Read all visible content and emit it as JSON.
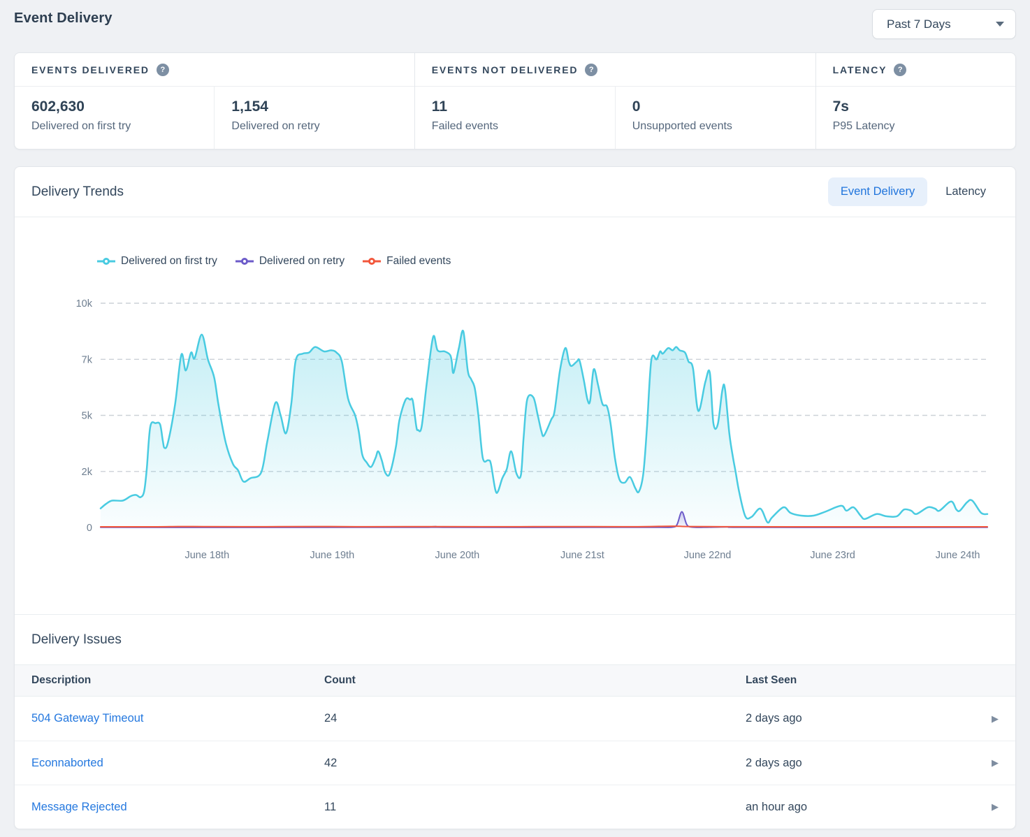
{
  "page": {
    "title": "Event Delivery",
    "time_range": "Past 7 Days",
    "accent_color": "#2478df"
  },
  "stats": {
    "sections": [
      {
        "title": "EVENTS DELIVERED",
        "metrics": [
          {
            "value": "602,630",
            "label": "Delivered on first try"
          },
          {
            "value": "1,154",
            "label": "Delivered on retry"
          }
        ]
      },
      {
        "title": "EVENTS NOT DELIVERED",
        "metrics": [
          {
            "value": "11",
            "label": "Failed events"
          },
          {
            "value": "0",
            "label": "Unsupported events"
          }
        ]
      },
      {
        "title": "LATENCY",
        "metrics": [
          {
            "value": "7s",
            "label": "P95 Latency"
          }
        ]
      }
    ]
  },
  "trends": {
    "title": "Delivery Trends",
    "tabs": [
      {
        "label": "Event Delivery",
        "active": true
      },
      {
        "label": "Latency",
        "active": false
      }
    ]
  },
  "chart_data": {
    "type": "area",
    "title": "Delivery Trends",
    "xlabel": "",
    "ylabel": "",
    "ylim": [
      0,
      10000
    ],
    "grid": "horizontal-dashed",
    "legend_position": "top-left",
    "x_axis_labels": [
      "June 18th",
      "June 19th",
      "June 20th",
      "June 21st",
      "June 22nd",
      "June 23rd",
      "June 24th"
    ],
    "y_ticks": [
      {
        "value": 0,
        "label": "0"
      },
      {
        "value": 2500,
        "label": "2k"
      },
      {
        "value": 5000,
        "label": "5k"
      },
      {
        "value": 7500,
        "label": "7k"
      },
      {
        "value": 10000,
        "label": "10k"
      }
    ],
    "series": [
      {
        "name": "Delivered on first try",
        "color": "#49cbe1",
        "fill": true,
        "points": [
          [
            0.0,
            850
          ],
          [
            0.006,
            1050
          ],
          [
            0.013,
            1200
          ],
          [
            0.025,
            1200
          ],
          [
            0.034,
            1400
          ],
          [
            0.04,
            1450
          ],
          [
            0.045,
            1350
          ],
          [
            0.049,
            1600
          ],
          [
            0.052,
            2600
          ],
          [
            0.056,
            4500
          ],
          [
            0.062,
            4650
          ],
          [
            0.067,
            4600
          ],
          [
            0.07,
            3900
          ],
          [
            0.072,
            3550
          ],
          [
            0.076,
            3800
          ],
          [
            0.084,
            5500
          ],
          [
            0.091,
            7700
          ],
          [
            0.096,
            7000
          ],
          [
            0.102,
            7800
          ],
          [
            0.106,
            7550
          ],
          [
            0.114,
            8600
          ],
          [
            0.121,
            7500
          ],
          [
            0.128,
            6700
          ],
          [
            0.133,
            5450
          ],
          [
            0.141,
            3800
          ],
          [
            0.149,
            2850
          ],
          [
            0.155,
            2550
          ],
          [
            0.161,
            2050
          ],
          [
            0.169,
            2200
          ],
          [
            0.181,
            2450
          ],
          [
            0.188,
            3850
          ],
          [
            0.197,
            5550
          ],
          [
            0.203,
            5000
          ],
          [
            0.209,
            4200
          ],
          [
            0.215,
            5500
          ],
          [
            0.22,
            7450
          ],
          [
            0.228,
            7750
          ],
          [
            0.235,
            7800
          ],
          [
            0.242,
            8050
          ],
          [
            0.252,
            7850
          ],
          [
            0.26,
            7900
          ],
          [
            0.266,
            7800
          ],
          [
            0.272,
            7400
          ],
          [
            0.279,
            5750
          ],
          [
            0.287,
            5000
          ],
          [
            0.291,
            4300
          ],
          [
            0.295,
            3250
          ],
          [
            0.3,
            2900
          ],
          [
            0.305,
            2700
          ],
          [
            0.31,
            3100
          ],
          [
            0.313,
            3400
          ],
          [
            0.317,
            3000
          ],
          [
            0.321,
            2450
          ],
          [
            0.326,
            2400
          ],
          [
            0.333,
            3600
          ],
          [
            0.337,
            4800
          ],
          [
            0.344,
            5700
          ],
          [
            0.349,
            5700
          ],
          [
            0.352,
            5650
          ],
          [
            0.356,
            4500
          ],
          [
            0.358,
            4350
          ],
          [
            0.362,
            4500
          ],
          [
            0.368,
            6500
          ],
          [
            0.375,
            8500
          ],
          [
            0.38,
            7900
          ],
          [
            0.388,
            7850
          ],
          [
            0.394,
            7700
          ],
          [
            0.396,
            7400
          ],
          [
            0.398,
            6900
          ],
          [
            0.404,
            8000
          ],
          [
            0.409,
            8750
          ],
          [
            0.414,
            7000
          ],
          [
            0.418,
            6600
          ],
          [
            0.422,
            6200
          ],
          [
            0.426,
            5000
          ],
          [
            0.431,
            3100
          ],
          [
            0.437,
            3000
          ],
          [
            0.44,
            2850
          ],
          [
            0.445,
            1700
          ],
          [
            0.448,
            1600
          ],
          [
            0.453,
            2200
          ],
          [
            0.458,
            2600
          ],
          [
            0.463,
            3400
          ],
          [
            0.469,
            2400
          ],
          [
            0.474,
            2350
          ],
          [
            0.477,
            4000
          ],
          [
            0.481,
            5700
          ],
          [
            0.488,
            5800
          ],
          [
            0.493,
            5000
          ],
          [
            0.497,
            4300
          ],
          [
            0.5,
            4100
          ],
          [
            0.508,
            4800
          ],
          [
            0.512,
            5200
          ],
          [
            0.518,
            7000
          ],
          [
            0.524,
            8000
          ],
          [
            0.528,
            7400
          ],
          [
            0.531,
            7200
          ],
          [
            0.537,
            7400
          ],
          [
            0.54,
            7450
          ],
          [
            0.545,
            6550
          ],
          [
            0.549,
            5700
          ],
          [
            0.552,
            5650
          ],
          [
            0.556,
            7050
          ],
          [
            0.561,
            6350
          ],
          [
            0.566,
            5500
          ],
          [
            0.571,
            5400
          ],
          [
            0.575,
            4650
          ],
          [
            0.58,
            3100
          ],
          [
            0.585,
            2150
          ],
          [
            0.591,
            2000
          ],
          [
            0.597,
            2250
          ],
          [
            0.603,
            1750
          ],
          [
            0.607,
            1600
          ],
          [
            0.612,
            2400
          ],
          [
            0.616,
            4400
          ],
          [
            0.621,
            7450
          ],
          [
            0.627,
            7500
          ],
          [
            0.631,
            7850
          ],
          [
            0.634,
            7750
          ],
          [
            0.64,
            8000
          ],
          [
            0.645,
            7900
          ],
          [
            0.649,
            8050
          ],
          [
            0.653,
            7900
          ],
          [
            0.659,
            7800
          ],
          [
            0.663,
            7400
          ],
          [
            0.668,
            7100
          ],
          [
            0.674,
            5200
          ],
          [
            0.682,
            6500
          ],
          [
            0.687,
            6900
          ],
          [
            0.691,
            4650
          ],
          [
            0.696,
            4600
          ],
          [
            0.701,
            6100
          ],
          [
            0.704,
            6200
          ],
          [
            0.709,
            4200
          ],
          [
            0.713,
            3150
          ],
          [
            0.716,
            2500
          ],
          [
            0.72,
            1600
          ],
          [
            0.727,
            500
          ],
          [
            0.734,
            470
          ],
          [
            0.744,
            840
          ],
          [
            0.752,
            230
          ],
          [
            0.757,
            440
          ],
          [
            0.77,
            900
          ],
          [
            0.778,
            650
          ],
          [
            0.79,
            530
          ],
          [
            0.804,
            530
          ],
          [
            0.817,
            700
          ],
          [
            0.835,
            970
          ],
          [
            0.841,
            750
          ],
          [
            0.849,
            900
          ],
          [
            0.857,
            530
          ],
          [
            0.862,
            380
          ],
          [
            0.875,
            600
          ],
          [
            0.886,
            500
          ],
          [
            0.898,
            500
          ],
          [
            0.906,
            800
          ],
          [
            0.914,
            750
          ],
          [
            0.92,
            600
          ],
          [
            0.933,
            900
          ],
          [
            0.941,
            840
          ],
          [
            0.946,
            750
          ],
          [
            0.959,
            1160
          ],
          [
            0.965,
            800
          ],
          [
            0.969,
            750
          ],
          [
            0.977,
            1120
          ],
          [
            0.983,
            1200
          ],
          [
            0.993,
            650
          ],
          [
            1.0,
            600
          ]
        ]
      },
      {
        "name": "Delivered on retry",
        "color": "#6c5bc9",
        "fill": true,
        "points": [
          [
            0.0,
            5
          ],
          [
            0.3,
            5
          ],
          [
            0.37,
            10
          ],
          [
            0.378,
            45
          ],
          [
            0.386,
            10
          ],
          [
            0.55,
            5
          ],
          [
            0.63,
            5
          ],
          [
            0.645,
            15
          ],
          [
            0.65,
            130
          ],
          [
            0.6555,
            700
          ],
          [
            0.661,
            130
          ],
          [
            0.667,
            15
          ],
          [
            0.68,
            5
          ],
          [
            0.718,
            30
          ],
          [
            0.73,
            5
          ],
          [
            1.0,
            5
          ]
        ]
      },
      {
        "name": "Failed events",
        "color": "#f2573c",
        "fill": false,
        "points": [
          [
            0.0,
            30
          ],
          [
            0.06,
            30
          ],
          [
            0.09,
            45
          ],
          [
            0.12,
            40
          ],
          [
            0.18,
            35
          ],
          [
            0.24,
            45
          ],
          [
            0.3,
            35
          ],
          [
            0.38,
            40
          ],
          [
            0.45,
            35
          ],
          [
            0.52,
            40
          ],
          [
            0.6,
            35
          ],
          [
            0.645,
            60
          ],
          [
            0.66,
            45
          ],
          [
            0.7,
            35
          ],
          [
            0.78,
            30
          ],
          [
            0.88,
            30
          ],
          [
            1.0,
            30
          ]
        ]
      }
    ]
  },
  "issues": {
    "title": "Delivery Issues",
    "columns": [
      "Description",
      "Count",
      "Last Seen"
    ],
    "rows": [
      {
        "description": "504 Gateway Timeout",
        "count": "24",
        "last_seen": "2 days ago"
      },
      {
        "description": "Econnaborted",
        "count": "42",
        "last_seen": "2 days ago"
      },
      {
        "description": "Message Rejected",
        "count": "11",
        "last_seen": "an hour ago"
      }
    ]
  }
}
